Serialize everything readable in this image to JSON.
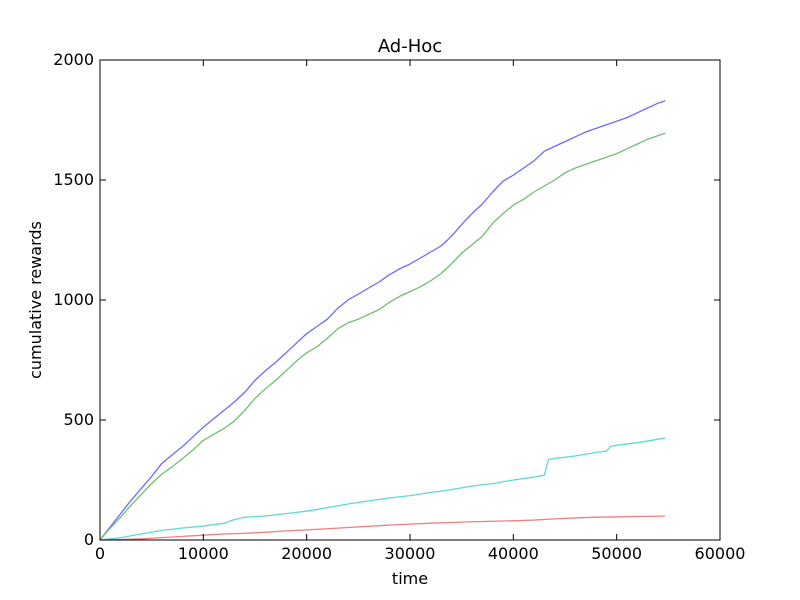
{
  "chart_data": {
    "type": "line",
    "title": "Ad-Hoc",
    "xlabel": "time",
    "ylabel": "cumulative rewards",
    "xlim": [
      0,
      60000
    ],
    "ylim": [
      0,
      2000
    ],
    "xticks": [
      0,
      10000,
      20000,
      30000,
      40000,
      50000,
      60000
    ],
    "xtick_labels": [
      "0",
      "10000",
      "20000",
      "30000",
      "40000",
      "50000",
      "60000"
    ],
    "yticks": [
      0,
      500,
      1000,
      1500,
      2000
    ],
    "ytick_labels": [
      "0",
      "500",
      "1000",
      "1500",
      "2000"
    ],
    "grid": false,
    "legend": "none",
    "series": [
      {
        "color": "#6a6aff",
        "x": [
          0,
          1000,
          2000,
          3000,
          4000,
          5000,
          6000,
          7000,
          8000,
          9000,
          10000,
          11000,
          12000,
          13000,
          14000,
          15000,
          16000,
          17000,
          18000,
          19000,
          20000,
          21000,
          22000,
          23000,
          24000,
          25000,
          26000,
          27000,
          28000,
          29000,
          30000,
          31000,
          32000,
          33000,
          34000,
          35000,
          36000,
          37000,
          38000,
          39000,
          40000,
          41000,
          42000,
          43000,
          44000,
          45000,
          46000,
          47000,
          48000,
          49000,
          50000,
          51000,
          52000,
          53000,
          54000,
          54700
        ],
        "y": [
          0,
          55,
          110,
          165,
          215,
          265,
          320,
          355,
          390,
          430,
          470,
          505,
          540,
          575,
          615,
          665,
          705,
          740,
          780,
          820,
          860,
          890,
          920,
          965,
          1000,
          1025,
          1050,
          1075,
          1105,
          1130,
          1150,
          1175,
          1200,
          1225,
          1265,
          1315,
          1360,
          1400,
          1450,
          1495,
          1520,
          1550,
          1580,
          1620,
          1640,
          1660,
          1680,
          1700,
          1715,
          1730,
          1745,
          1760,
          1780,
          1800,
          1820,
          1830
        ]
      },
      {
        "color": "#6fbf6f",
        "x": [
          0,
          1000,
          2000,
          3000,
          4000,
          5000,
          6000,
          7000,
          8000,
          9000,
          10000,
          11000,
          12000,
          13000,
          14000,
          15000,
          16000,
          17000,
          18000,
          19000,
          20000,
          21000,
          22000,
          23000,
          24000,
          25000,
          26000,
          27000,
          28000,
          29000,
          30000,
          31000,
          32000,
          33000,
          34000,
          35000,
          36000,
          37000,
          38000,
          39000,
          40000,
          41000,
          42000,
          43000,
          44000,
          45000,
          46000,
          47000,
          48000,
          49000,
          50000,
          51000,
          52000,
          53000,
          54000,
          54700
        ],
        "y": [
          0,
          50,
          95,
          145,
          190,
          235,
          275,
          305,
          340,
          375,
          415,
          440,
          465,
          495,
          540,
          590,
          630,
          665,
          705,
          745,
          780,
          805,
          840,
          880,
          905,
          920,
          940,
          960,
          990,
          1015,
          1035,
          1055,
          1080,
          1110,
          1150,
          1195,
          1230,
          1265,
          1320,
          1360,
          1395,
          1420,
          1450,
          1475,
          1500,
          1530,
          1550,
          1565,
          1580,
          1595,
          1610,
          1630,
          1650,
          1670,
          1685,
          1695
        ]
      },
      {
        "color": "#5ed8d8",
        "x": [
          0,
          2000,
          4000,
          6000,
          8000,
          10000,
          12000,
          13000,
          14000,
          16000,
          18000,
          20000,
          22000,
          24000,
          26000,
          28000,
          30000,
          32000,
          34000,
          36000,
          38000,
          40000,
          42000,
          43000,
          43400,
          44000,
          46000,
          48000,
          49000,
          49400,
          50000,
          52000,
          54000,
          54700
        ],
        "y": [
          0,
          10,
          25,
          40,
          50,
          58,
          70,
          85,
          95,
          100,
          110,
          120,
          135,
          150,
          163,
          175,
          185,
          198,
          210,
          225,
          235,
          250,
          262,
          270,
          335,
          340,
          350,
          365,
          370,
          390,
          395,
          405,
          420,
          425
        ]
      },
      {
        "color": "#f08080",
        "x": [
          0,
          2000,
          4000,
          6000,
          8000,
          10000,
          12000,
          14000,
          16000,
          18000,
          20000,
          22000,
          24000,
          26000,
          28000,
          30000,
          32000,
          34000,
          36000,
          38000,
          40000,
          42000,
          44000,
          46000,
          48000,
          50000,
          52000,
          54000,
          54700
        ],
        "y": [
          0,
          2,
          5,
          10,
          15,
          20,
          25,
          28,
          32,
          38,
          42,
          47,
          52,
          57,
          62,
          66,
          70,
          73,
          76,
          78,
          80,
          83,
          88,
          92,
          95,
          96,
          98,
          99,
          100
        ]
      }
    ]
  }
}
